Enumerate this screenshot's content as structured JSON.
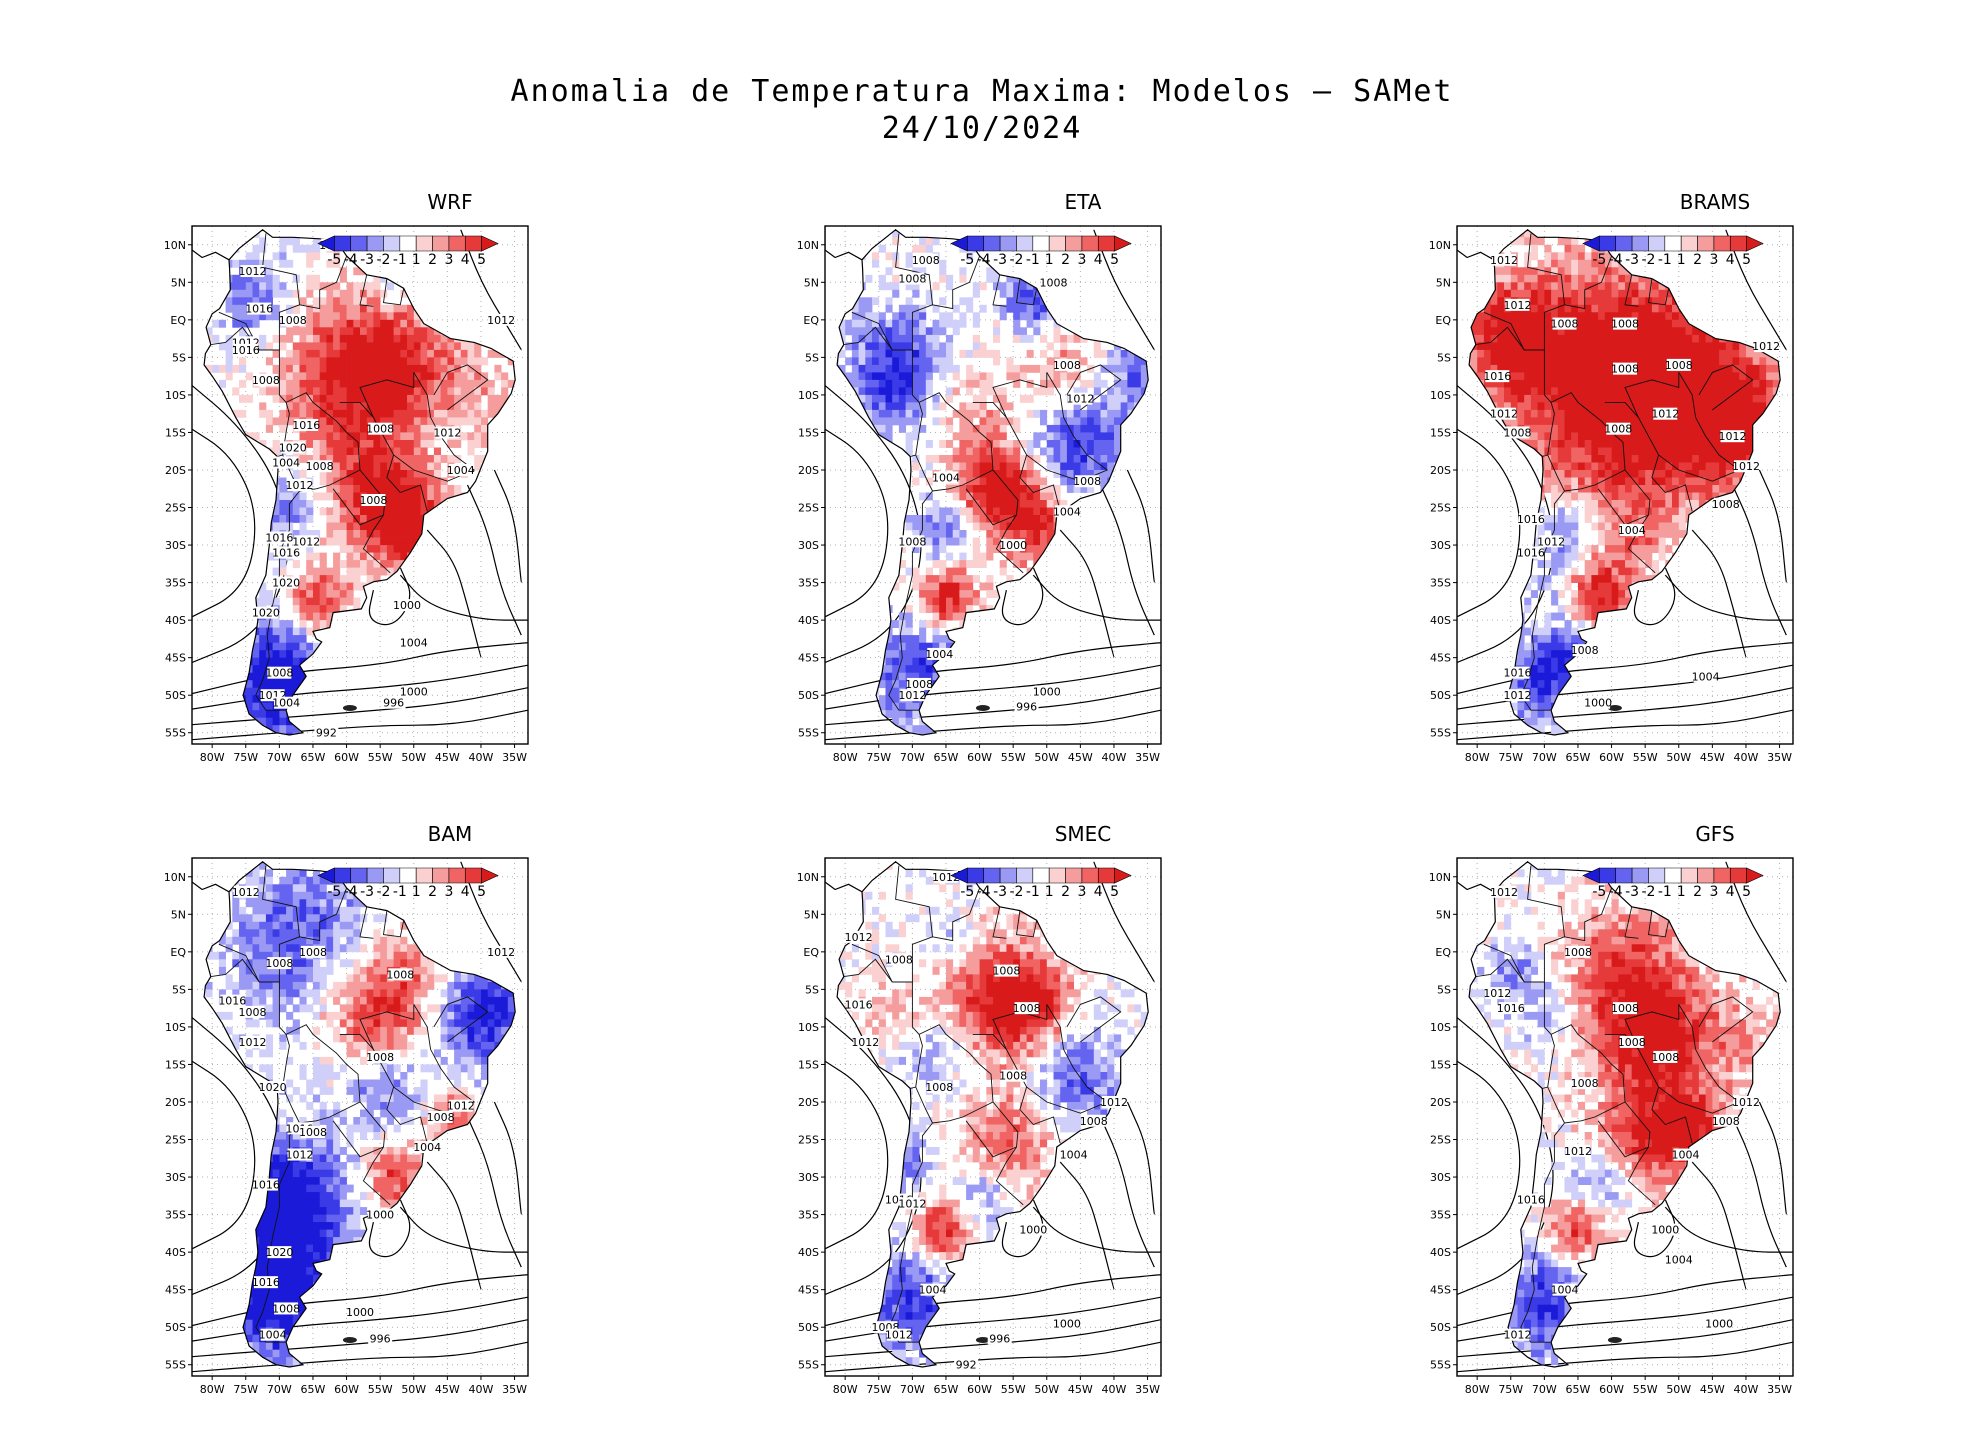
{
  "figure": {
    "title_line1": "Anomalia de Temperatura Maxima: Modelos — SAMet",
    "title_line2": "24/10/2024"
  },
  "axes": {
    "lat_labels": [
      "10N",
      "5N",
      "EQ",
      "5S",
      "10S",
      "15S",
      "20S",
      "25S",
      "30S",
      "35S",
      "40S",
      "45S",
      "50S",
      "55S"
    ],
    "lon_labels": [
      "80W",
      "75W",
      "70W",
      "65W",
      "60W",
      "55W",
      "50W",
      "45W",
      "40W",
      "35W"
    ]
  },
  "colorbar": {
    "tick_labels": [
      "-5",
      "-4",
      "-3",
      "-2",
      "-1",
      "1",
      "2",
      "3",
      "4",
      "5"
    ],
    "colors": [
      "#1a1ad8",
      "#3a3ae6",
      "#6464f0",
      "#9a9af5",
      "#cfcffa",
      "#ffffff",
      "#fad0d0",
      "#f59c9c",
      "#f06464",
      "#e63a3a",
      "#d81a1a"
    ]
  },
  "panels": [
    {
      "name": "WRF",
      "contour_labels": [
        "1012",
        "1012",
        "1016",
        "1008",
        "1012",
        "1016",
        "1008",
        "1016",
        "1008",
        "1012",
        "1020",
        "1004",
        "1008",
        "1012",
        "1008",
        "1004",
        "1016",
        "1012",
        "1016",
        "1020",
        "1020",
        "1000",
        "1004",
        "1008",
        "1012",
        "1004",
        "1000",
        "996",
        "992",
        "1012"
      ]
    },
    {
      "name": "ETA",
      "contour_labels": [
        "1008",
        "1008",
        "1008",
        "1008",
        "1012",
        "1004",
        "1008",
        "1004",
        "1000",
        "1008",
        "1004",
        "1008",
        "1012",
        "1000",
        "996"
      ]
    },
    {
      "name": "BRAMS",
      "contour_labels": [
        "1012",
        "1012",
        "1012",
        "1008",
        "1008",
        "1016",
        "1008",
        "1008",
        "1012",
        "1012",
        "1008",
        "1008",
        "1012",
        "1012",
        "1008",
        "1016",
        "1012",
        "1016",
        "1004",
        "1008",
        "1016",
        "1012",
        "1004",
        "1000"
      ]
    },
    {
      "name": "BAM",
      "contour_labels": [
        "1012",
        "1012",
        "1008",
        "1008",
        "1008",
        "1016",
        "1008",
        "1012",
        "1008",
        "1020",
        "1016",
        "1008",
        "1012",
        "1012",
        "1008",
        "1004",
        "1016",
        "1000",
        "1020",
        "1016",
        "1008",
        "1004",
        "1000",
        "996"
      ]
    },
    {
      "name": "SMEC",
      "contour_labels": [
        "1012",
        "1012",
        "1008",
        "1008",
        "1008",
        "1016",
        "1012",
        "1008",
        "1008",
        "1012",
        "1008",
        "1004",
        "1016",
        "1012",
        "1000",
        "1004",
        "1008",
        "1012",
        "1000",
        "996",
        "992"
      ]
    },
    {
      "name": "GFS",
      "contour_labels": [
        "1012",
        "1008",
        "1012",
        "1016",
        "1008",
        "1008",
        "1008",
        "1008",
        "1012",
        "1008",
        "1012",
        "1004",
        "1016",
        "1000",
        "1004",
        "1004",
        "1000",
        "1012"
      ]
    }
  ]
}
